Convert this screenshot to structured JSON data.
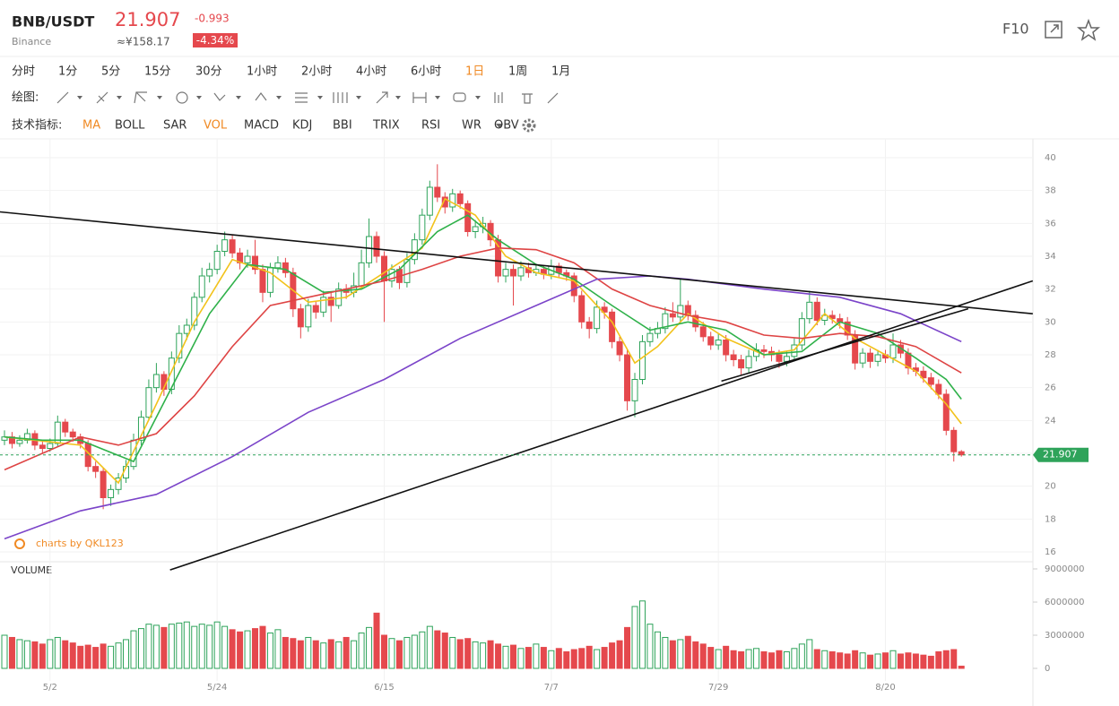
{
  "header": {
    "pair": "BNB/USDT",
    "exchange": "Binance",
    "price": "21.907",
    "change": "-0.993",
    "change_pct": "-4.34%",
    "cny": "≈¥158.17",
    "f10": "F10"
  },
  "toolbar": {
    "periods": [
      "分时",
      "1分",
      "5分",
      "15分",
      "30分",
      "1小时",
      "2小时",
      "4小时",
      "6小时",
      "1日",
      "1周",
      "1月"
    ],
    "selected_period": 9,
    "draw_label": "绘图:",
    "indicator_label": "技术指标:",
    "indicators": [
      "MA",
      "BOLL",
      "SAR",
      "VOL",
      "MACD",
      "KDJ",
      "BBI",
      "TRIX",
      "RSI",
      "WR",
      "OBV"
    ],
    "selected_indicators": [
      0,
      3
    ]
  },
  "chart_data": {
    "type": "candlestick",
    "watermark": "charts by QKL123",
    "volume_label": "VOLUME",
    "up_color": "#2ea35a",
    "down_color": "#e5484d",
    "categories": [
      null,
      null,
      null,
      null,
      null,
      null,
      "5/2",
      null,
      null,
      null,
      null,
      null,
      null,
      null,
      null,
      null,
      null,
      null,
      null,
      null,
      null,
      null,
      null,
      null,
      null,
      null,
      null,
      null,
      "5/24",
      null,
      null,
      null,
      null,
      null,
      null,
      null,
      null,
      null,
      null,
      null,
      null,
      null,
      null,
      null,
      null,
      null,
      null,
      null,
      null,
      null,
      "6/15",
      null,
      null,
      null,
      null,
      null,
      null,
      null,
      null,
      null,
      null,
      null,
      null,
      null,
      null,
      null,
      null,
      null,
      null,
      null,
      null,
      null,
      "7/7",
      null,
      null,
      null,
      null,
      null,
      null,
      null,
      null,
      null,
      null,
      null,
      null,
      null,
      null,
      null,
      null,
      null,
      null,
      null,
      null,
      null,
      "7/29",
      null,
      null,
      null,
      null,
      null,
      null,
      null,
      null,
      null,
      null,
      null,
      null,
      null,
      null,
      null,
      null,
      null,
      null,
      null,
      null,
      null,
      "8/20",
      null,
      null,
      null,
      null,
      null,
      null,
      null,
      null,
      null,
      null
    ],
    "candles": [
      [
        22.8,
        23.4,
        22.5,
        23.0
      ],
      [
        23.0,
        23.3,
        22.3,
        22.6
      ],
      [
        22.6,
        23.1,
        22.4,
        22.8
      ],
      [
        22.8,
        23.5,
        22.6,
        23.2
      ],
      [
        23.2,
        23.4,
        22.2,
        22.5
      ],
      [
        22.5,
        22.8,
        22.0,
        22.3
      ],
      [
        22.3,
        22.9,
        22.1,
        22.6
      ],
      [
        22.6,
        24.3,
        22.4,
        23.9
      ],
      [
        23.9,
        24.1,
        23.0,
        23.3
      ],
      [
        23.3,
        23.5,
        22.7,
        23.0
      ],
      [
        23.0,
        23.2,
        22.3,
        22.6
      ],
      [
        22.6,
        22.8,
        20.9,
        21.2
      ],
      [
        21.2,
        21.5,
        20.5,
        20.9
      ],
      [
        20.9,
        21.1,
        18.6,
        19.3
      ],
      [
        19.3,
        20.1,
        18.8,
        19.8
      ],
      [
        19.8,
        20.8,
        19.5,
        20.5
      ],
      [
        20.5,
        21.6,
        20.2,
        21.2
      ],
      [
        21.2,
        23.2,
        21.0,
        22.8
      ],
      [
        22.8,
        24.6,
        22.5,
        24.2
      ],
      [
        24.2,
        26.5,
        24.0,
        26.0
      ],
      [
        26.0,
        27.5,
        25.7,
        26.8
      ],
      [
        26.8,
        27.0,
        25.5,
        25.9
      ],
      [
        25.9,
        28.2,
        25.6,
        27.8
      ],
      [
        27.8,
        29.8,
        27.5,
        29.3
      ],
      [
        29.3,
        30.2,
        28.9,
        29.8
      ],
      [
        29.8,
        31.8,
        29.5,
        31.5
      ],
      [
        31.5,
        33.3,
        31.2,
        32.8
      ],
      [
        32.8,
        33.6,
        32.4,
        33.2
      ],
      [
        33.2,
        34.7,
        32.9,
        34.3
      ],
      [
        34.3,
        35.5,
        34.0,
        35.0
      ],
      [
        35.0,
        35.3,
        33.9,
        34.2
      ],
      [
        34.2,
        34.5,
        33.2,
        33.6
      ],
      [
        33.6,
        34.4,
        33.3,
        34.0
      ],
      [
        34.0,
        35.0,
        32.9,
        33.2
      ],
      [
        33.2,
        33.5,
        31.2,
        31.8
      ],
      [
        31.8,
        33.6,
        31.5,
        33.3
      ],
      [
        33.3,
        34.0,
        33.0,
        33.6
      ],
      [
        33.6,
        33.9,
        32.7,
        33.0
      ],
      [
        33.0,
        33.3,
        30.3,
        30.8
      ],
      [
        30.8,
        31.1,
        29.0,
        29.7
      ],
      [
        29.7,
        31.4,
        29.4,
        31.0
      ],
      [
        31.0,
        31.3,
        30.2,
        30.6
      ],
      [
        30.6,
        31.9,
        30.3,
        31.5
      ],
      [
        31.5,
        31.8,
        30.0,
        31.0
      ],
      [
        31.0,
        32.4,
        30.8,
        32.0
      ],
      [
        32.0,
        32.3,
        31.4,
        31.8
      ],
      [
        31.8,
        33.0,
        31.5,
        32.2
      ],
      [
        32.2,
        34.4,
        32.0,
        33.6
      ],
      [
        33.6,
        36.3,
        33.3,
        35.2
      ],
      [
        35.2,
        35.5,
        33.6,
        34.0
      ],
      [
        34.0,
        34.3,
        30.0,
        32.5
      ],
      [
        32.5,
        33.5,
        32.1,
        33.2
      ],
      [
        33.2,
        33.4,
        32.0,
        32.4
      ],
      [
        32.4,
        34.2,
        32.1,
        33.8
      ],
      [
        33.8,
        35.4,
        33.5,
        35.0
      ],
      [
        35.0,
        36.9,
        34.7,
        36.5
      ],
      [
        36.5,
        38.6,
        36.2,
        38.2
      ],
      [
        38.2,
        39.6,
        37.3,
        37.6
      ],
      [
        37.6,
        37.9,
        36.6,
        37.0
      ],
      [
        37.0,
        38.1,
        36.7,
        37.8
      ],
      [
        37.8,
        38.0,
        36.9,
        37.2
      ],
      [
        37.2,
        37.4,
        35.2,
        35.5
      ],
      [
        35.5,
        36.2,
        35.1,
        35.8
      ],
      [
        35.8,
        36.4,
        35.4,
        36.0
      ],
      [
        36.0,
        36.2,
        34.6,
        35.0
      ],
      [
        35.0,
        35.3,
        32.4,
        32.8
      ],
      [
        32.8,
        33.6,
        32.4,
        33.2
      ],
      [
        33.2,
        33.5,
        31.0,
        32.8
      ],
      [
        32.8,
        33.7,
        32.5,
        33.3
      ],
      [
        33.3,
        33.6,
        32.7,
        33.0
      ],
      [
        33.0,
        33.5,
        32.8,
        33.2
      ],
      [
        33.2,
        33.4,
        32.6,
        32.9
      ],
      [
        32.9,
        33.8,
        32.6,
        33.4
      ],
      [
        33.4,
        33.6,
        32.7,
        33.0
      ],
      [
        33.0,
        33.2,
        32.5,
        32.8
      ],
      [
        32.8,
        33.0,
        31.2,
        31.6
      ],
      [
        31.6,
        31.9,
        29.6,
        30.0
      ],
      [
        30.0,
        30.3,
        29.0,
        29.6
      ],
      [
        29.6,
        31.3,
        29.3,
        30.9
      ],
      [
        30.9,
        31.2,
        30.2,
        30.6
      ],
      [
        30.6,
        30.8,
        28.4,
        28.8
      ],
      [
        28.8,
        29.1,
        27.6,
        28.0
      ],
      [
        28.0,
        28.3,
        24.6,
        25.2
      ],
      [
        25.2,
        26.9,
        24.2,
        26.5
      ],
      [
        26.5,
        29.2,
        26.2,
        28.8
      ],
      [
        28.8,
        29.7,
        28.5,
        29.3
      ],
      [
        29.3,
        30.0,
        29.0,
        29.6
      ],
      [
        29.6,
        30.9,
        29.3,
        30.5
      ],
      [
        30.5,
        31.2,
        30.0,
        30.3
      ],
      [
        30.3,
        32.6,
        30.0,
        31.0
      ],
      [
        31.0,
        31.3,
        30.1,
        30.4
      ],
      [
        30.4,
        30.7,
        29.4,
        29.7
      ],
      [
        29.7,
        30.0,
        28.8,
        29.1
      ],
      [
        29.1,
        29.4,
        28.3,
        28.6
      ],
      [
        28.6,
        29.3,
        28.3,
        28.9
      ],
      [
        28.9,
        29.2,
        27.6,
        28.0
      ],
      [
        28.0,
        28.3,
        27.3,
        27.7
      ],
      [
        27.7,
        28.0,
        26.8,
        27.2
      ],
      [
        27.2,
        28.3,
        26.9,
        27.9
      ],
      [
        27.9,
        28.7,
        27.6,
        28.3
      ],
      [
        28.3,
        28.6,
        27.8,
        28.2
      ],
      [
        28.2,
        28.5,
        27.6,
        28.0
      ],
      [
        28.0,
        28.3,
        27.2,
        27.6
      ],
      [
        27.6,
        28.2,
        27.3,
        27.9
      ],
      [
        27.9,
        29.0,
        27.6,
        28.6
      ],
      [
        28.6,
        30.6,
        28.3,
        30.2
      ],
      [
        30.2,
        31.9,
        29.9,
        31.2
      ],
      [
        31.2,
        31.5,
        29.8,
        30.1
      ],
      [
        30.1,
        30.8,
        29.8,
        30.4
      ],
      [
        30.4,
        30.7,
        29.9,
        30.2
      ],
      [
        30.2,
        30.5,
        29.6,
        30.0
      ],
      [
        30.0,
        30.3,
        28.9,
        29.2
      ],
      [
        29.2,
        29.5,
        27.1,
        27.5
      ],
      [
        27.5,
        28.4,
        27.2,
        28.1
      ],
      [
        28.1,
        28.4,
        27.2,
        27.6
      ],
      [
        27.6,
        28.3,
        27.3,
        28.0
      ],
      [
        28.0,
        28.3,
        27.5,
        27.8
      ],
      [
        27.8,
        29.3,
        27.5,
        28.6
      ],
      [
        28.6,
        28.9,
        27.8,
        28.1
      ],
      [
        28.1,
        28.4,
        26.8,
        27.2
      ],
      [
        27.2,
        27.5,
        26.7,
        27.0
      ],
      [
        27.0,
        27.3,
        26.3,
        26.6
      ],
      [
        26.6,
        26.9,
        25.9,
        26.2
      ],
      [
        26.2,
        26.5,
        25.3,
        25.6
      ],
      [
        25.6,
        25.9,
        23.1,
        23.4
      ],
      [
        23.4,
        23.6,
        21.5,
        22.1
      ],
      [
        22.1,
        22.2,
        21.8,
        21.907
      ]
    ],
    "volumes": [
      3000000,
      2800000,
      2600000,
      2500000,
      2400000,
      2200000,
      2600000,
      2800000,
      2500000,
      2300000,
      2000000,
      2100000,
      1900000,
      2200000,
      2000000,
      2300000,
      2600000,
      3400000,
      3600000,
      4000000,
      3900000,
      3700000,
      4000000,
      4100000,
      4200000,
      3800000,
      4000000,
      3900000,
      4200000,
      3800000,
      3500000,
      3300000,
      3400000,
      3600000,
      3800000,
      3200000,
      3500000,
      2800000,
      2700000,
      2500000,
      2800000,
      2500000,
      2300000,
      2600000,
      2400000,
      2800000,
      2500000,
      3200000,
      3700000,
      5000000,
      3000000,
      2700000,
      2500000,
      2800000,
      3000000,
      3300000,
      3800000,
      3400000,
      3200000,
      2800000,
      2600000,
      2700000,
      2400000,
      2300000,
      2500000,
      2200000,
      2000000,
      2100000,
      1800000,
      1900000,
      2200000,
      1900000,
      1600000,
      1800000,
      1500000,
      1700000,
      1800000,
      2000000,
      1700000,
      1900000,
      2300000,
      2500000,
      3700000,
      5600000,
      6100000,
      4000000,
      3300000,
      2800000,
      2500000,
      2600000,
      2900000,
      2400000,
      2200000,
      1900000,
      1700000,
      2000000,
      1600000,
      1500000,
      1700000,
      1800000,
      1500000,
      1400000,
      1600000,
      1500000,
      1800000,
      2200000,
      2600000,
      1700000,
      1600000,
      1500000,
      1400000,
      1300000,
      1600000,
      1400000,
      1200000,
      1300000,
      1400000,
      1600000,
      1300000,
      1400000,
      1300000,
      1200000,
      1100000,
      1500000,
      1600000,
      1700000,
      200000
    ],
    "ma_lines": [
      {
        "color": "#f2c21b",
        "x": [
          0,
          10,
          15,
          20,
          25,
          30,
          35,
          40,
          45,
          50,
          55,
          58,
          62,
          66,
          70,
          75,
          80,
          83,
          86,
          90,
          95,
          100,
          104,
          108,
          112,
          116,
          120,
          124,
          126
        ],
        "values": [
          23,
          22.5,
          20.2,
          25,
          30,
          33.8,
          33,
          31.2,
          31.5,
          33,
          34.5,
          37.5,
          36.5,
          34,
          33,
          32.5,
          30,
          27.5,
          28.5,
          30.5,
          29,
          28,
          28.3,
          30.5,
          29,
          28,
          27,
          25,
          23.8
        ]
      },
      {
        "color": "#2fb14a",
        "x": [
          0,
          5,
          10,
          17,
          22,
          27,
          32,
          37,
          42,
          47,
          52,
          57,
          61,
          65,
          70,
          75,
          80,
          85,
          90,
          95,
          100,
          105,
          110,
          115,
          120,
          124,
          126
        ],
        "values": [
          23,
          22.8,
          22.8,
          21.5,
          26,
          30.5,
          33.5,
          33.2,
          31.8,
          32,
          33.2,
          35.5,
          36.5,
          35,
          33.5,
          32.6,
          31,
          29.5,
          30,
          29.5,
          28,
          28.2,
          30,
          29.3,
          27.8,
          26.5,
          25.3
        ]
      },
      {
        "color": "#de4444",
        "x": [
          0,
          5,
          10,
          15,
          20,
          25,
          30,
          35,
          40,
          45,
          50,
          55,
          60,
          65,
          70,
          75,
          80,
          85,
          90,
          95,
          100,
          105,
          110,
          115,
          120,
          126
        ],
        "values": [
          21,
          22,
          23,
          22.5,
          23.2,
          25.5,
          28.5,
          31,
          31.5,
          32,
          32.5,
          33.2,
          34,
          34.5,
          34.4,
          33.6,
          32,
          31,
          30.4,
          30,
          29.2,
          29,
          29.3,
          29.1,
          28.5,
          26.9
        ]
      },
      {
        "color": "#7b44c9",
        "x": [
          0,
          10,
          20,
          30,
          40,
          50,
          60,
          70,
          78,
          85,
          90,
          100,
          110,
          118,
          126
        ],
        "values": [
          16.8,
          18.5,
          19.5,
          21.8,
          24.5,
          26.5,
          29,
          31,
          32.6,
          32.8,
          32.6,
          32,
          31.5,
          30.5,
          28.8
        ]
      }
    ],
    "trendlines": [
      {
        "points": [
          [
            -0.6,
            36.7
          ],
          [
            135.4,
            30.5
          ]
        ]
      },
      {
        "points": [
          [
            21.8,
            14.9
          ],
          [
            135.4,
            32.5
          ]
        ]
      },
      {
        "points": [
          [
            94.4,
            26.4
          ],
          [
            126.9,
            30.8
          ]
        ]
      }
    ],
    "ylim": [
      16,
      40
    ],
    "yticks": [
      16,
      18,
      20,
      22,
      24,
      26,
      28,
      30,
      32,
      34,
      36,
      38,
      40
    ],
    "vlim": [
      0,
      9000000
    ],
    "vticks": [
      0,
      3000000,
      6000000,
      9000000
    ],
    "grid": true
  }
}
